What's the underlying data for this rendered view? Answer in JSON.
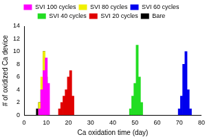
{
  "chart_data": {
    "type": "bar",
    "x_label": "Ca oxidation time (day)",
    "y_label": "# of oxidized Ca device",
    "xlim": [
      0,
      80
    ],
    "xticks": [
      0,
      10,
      20,
      30,
      40,
      50,
      60,
      70,
      80
    ],
    "ylim": [
      0,
      14
    ],
    "yticks": [
      0,
      2,
      4,
      6,
      8,
      10,
      12,
      14
    ],
    "grid": false,
    "legend": "top",
    "series": [
      {
        "name": "Bare",
        "color": "#000000",
        "x": [
          6,
          7,
          8,
          9,
          10
        ],
        "values": [
          1,
          2,
          4,
          10,
          6
        ]
      },
      {
        "name": "SVI 20 cycles",
        "color": "#e00000",
        "x": [
          16,
          17,
          18,
          19,
          20,
          21,
          22
        ],
        "values": [
          1,
          2,
          3,
          4,
          6,
          7,
          3
        ]
      },
      {
        "name": "SVI 40 cycles",
        "color": "#22dd22",
        "x": [
          48,
          49,
          50,
          51,
          52,
          53
        ],
        "values": [
          1,
          3,
          5,
          11,
          6,
          2
        ]
      },
      {
        "name": "SVI 60 cycles",
        "color": "#0000ee",
        "x": [
          70,
          71,
          72,
          73,
          74,
          75
        ],
        "values": [
          1,
          3,
          8,
          10,
          4,
          1
        ]
      },
      {
        "name": "SVI 80 cycles",
        "color": "#f0f000",
        "x": [
          7,
          8,
          9,
          10
        ],
        "values": [
          2,
          6,
          10,
          5
        ]
      },
      {
        "name": "SVI 100 cycles",
        "color": "#ff00ff",
        "x": [
          7,
          8,
          9,
          10,
          11
        ],
        "values": [
          1,
          4,
          7,
          9,
          5
        ]
      }
    ]
  }
}
